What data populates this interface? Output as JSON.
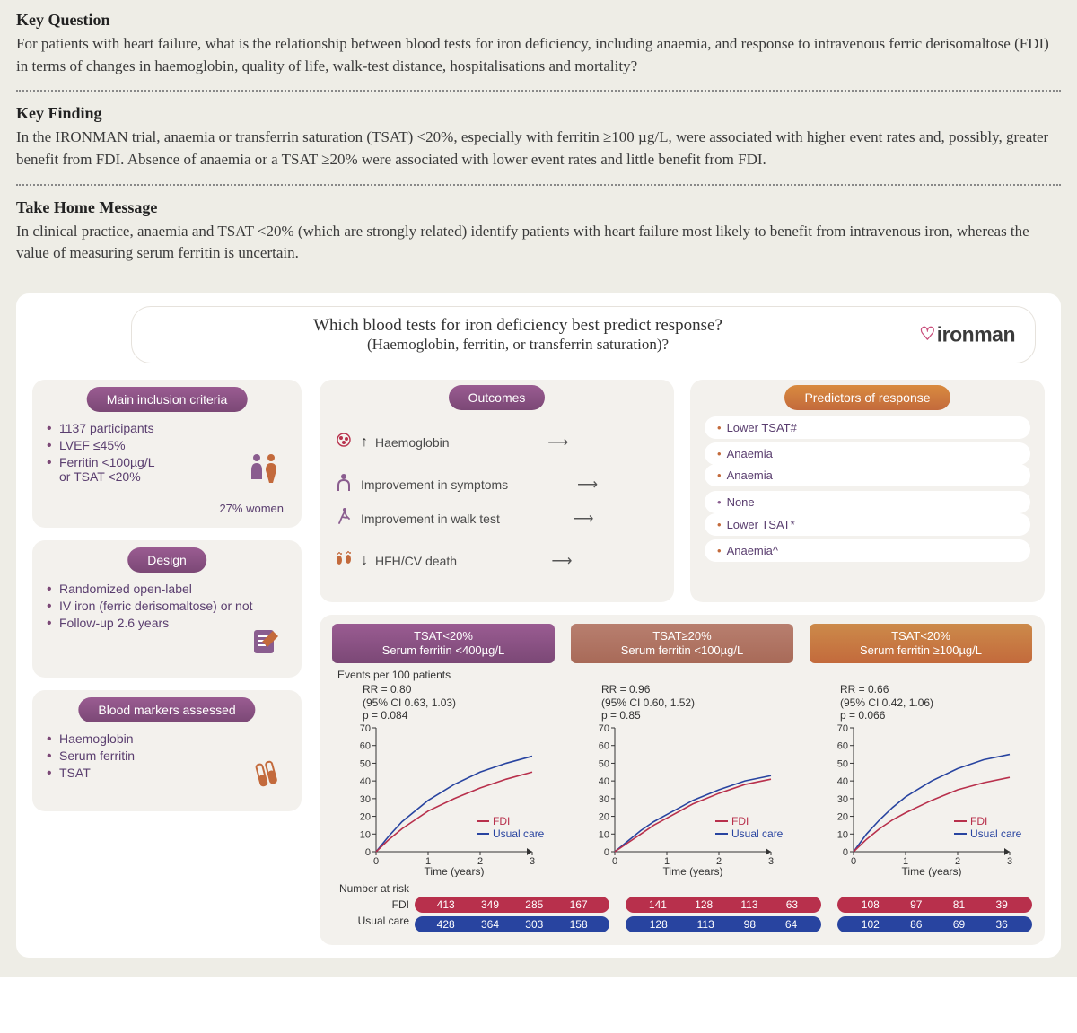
{
  "sections": {
    "key_question": {
      "title": "Key Question",
      "body": "For patients with heart failure, what is the relationship between blood tests for iron deficiency, including anaemia, and response to intravenous ferric derisomaltose (FDI) in terms of changes in haemoglobin, quality of life, walk-test distance, hospitalisations and mortality?"
    },
    "key_finding": {
      "title": "Key Finding",
      "body": "In the IRONMAN trial, anaemia or transferrin saturation (TSAT) <20%, especially with ferritin ≥100 µg/L, were associated with higher event rates and, possibly, greater benefit from FDI. Absence of anaemia or a TSAT ≥20% were associated with lower event rates and little benefit from FDI."
    },
    "take_home": {
      "title": "Take Home Message",
      "body": "In clinical practice, anaemia and TSAT <20% (which are strongly related) identify patients with heart failure most likely to benefit from intravenous iron, whereas the value of measuring serum ferritin is uncertain."
    }
  },
  "banner": {
    "title": "Which blood tests for iron deficiency best predict response?",
    "subtitle": "(Haemoglobin, ferritin, or transferrin saturation)?",
    "logo": "ironman"
  },
  "left_panels": {
    "inclusion": {
      "title": "Main inclusion criteria",
      "items": [
        "1137 participants",
        "LVEF ≤45%",
        "Ferritin <100µg/L\nor TSAT <20%"
      ],
      "pct_women": "27% women"
    },
    "design": {
      "title": "Design",
      "items": [
        "Randomized open-label",
        "IV iron (ferric derisomaltose) or not",
        "Follow-up 2.6 years"
      ]
    },
    "markers": {
      "title": "Blood markers assessed",
      "items": [
        "Haemoglobin",
        "Serum ferritin",
        "TSAT"
      ]
    }
  },
  "right_top": {
    "outcomes_title": "Outcomes",
    "predictors_title": "Predictors of response",
    "rows": [
      {
        "icon": "blood",
        "arrow": "up",
        "label": "Haemoglobin",
        "predictors": [
          "Lower TSAT#",
          "Anaemia"
        ]
      },
      {
        "icon": "person",
        "arrow": "",
        "label": "Improvement in symptoms",
        "predictors": [
          "Anaemia"
        ]
      },
      {
        "icon": "walk",
        "arrow": "",
        "label": "Improvement in walk test",
        "predictors": [
          "None"
        ]
      },
      {
        "icon": "feet",
        "arrow": "down",
        "label": "HFH/CV death",
        "predictors": [
          "Lower TSAT*",
          "Anaemia^"
        ]
      }
    ]
  },
  "charts": {
    "events_label": "Events per 100 patients",
    "ylim": [
      0,
      70
    ],
    "ytick_step": 10,
    "xlim": [
      0,
      3
    ],
    "xtick_step": 1,
    "xlabel": "Time (years)",
    "legend": {
      "fdi": "FDI",
      "usual": "Usual care"
    },
    "number_at_risk_label": "Number at risk",
    "fdi_label": "FDI",
    "usual_label": "Usual care",
    "colors": {
      "fdi": "#b8304c",
      "usual": "#2844a0",
      "axis": "#333333",
      "grid": "#e0e0e0",
      "bg": "#f3f1ed"
    },
    "subplots": [
      {
        "tab_line1": "TSAT<20%",
        "tab_line2": "Serum ferritin <400µg/L",
        "tab_color": "#7b4876",
        "rr": "RR = 0.80",
        "ci": "(95% CI 0.63, 1.03)",
        "p": "p = 0.084",
        "fdi": {
          "x": [
            0,
            0.25,
            0.5,
            0.75,
            1,
            1.5,
            2,
            2.5,
            3
          ],
          "y": [
            0,
            7,
            13,
            18,
            23,
            30,
            36,
            41,
            45
          ]
        },
        "usual": {
          "x": [
            0,
            0.25,
            0.5,
            0.75,
            1,
            1.5,
            2,
            2.5,
            3
          ],
          "y": [
            0,
            9,
            17,
            23,
            29,
            38,
            45,
            50,
            54
          ]
        },
        "at_risk_fdi": [
          413,
          349,
          285,
          167
        ],
        "at_risk_usual": [
          428,
          364,
          303,
          158
        ]
      },
      {
        "tab_line1": "TSAT≥20%",
        "tab_line2": "Serum ferritin <100µg/L",
        "tab_color": "#a86a58",
        "rr": "RR = 0.96",
        "ci": "(95% CI 0.60, 1.52)",
        "p": "p = 0.85",
        "fdi": {
          "x": [
            0,
            0.25,
            0.5,
            0.75,
            1,
            1.5,
            2,
            2.5,
            3
          ],
          "y": [
            0,
            5,
            10,
            15,
            19,
            27,
            33,
            38,
            41
          ]
        },
        "usual": {
          "x": [
            0,
            0.25,
            0.5,
            0.75,
            1,
            1.5,
            2,
            2.5,
            3
          ],
          "y": [
            0,
            6,
            12,
            17,
            21,
            29,
            35,
            40,
            43
          ]
        },
        "at_risk_fdi": [
          141,
          128,
          113,
          63
        ],
        "at_risk_usual": [
          128,
          113,
          98,
          64
        ]
      },
      {
        "tab_line1": "TSAT<20%",
        "tab_line2": "Serum ferritin ≥100µg/L",
        "tab_color": "#c36a3c",
        "rr": "RR = 0.66",
        "ci": "(95% CI 0.42, 1.06)",
        "p": "p = 0.066",
        "fdi": {
          "x": [
            0,
            0.25,
            0.5,
            0.75,
            1,
            1.5,
            2,
            2.5,
            3
          ],
          "y": [
            0,
            7,
            13,
            18,
            22,
            29,
            35,
            39,
            42
          ]
        },
        "usual": {
          "x": [
            0,
            0.25,
            0.5,
            0.75,
            1,
            1.5,
            2,
            2.5,
            3
          ],
          "y": [
            0,
            10,
            18,
            25,
            31,
            40,
            47,
            52,
            55
          ]
        },
        "at_risk_fdi": [
          108,
          97,
          81,
          39
        ],
        "at_risk_usual": [
          102,
          86,
          69,
          36
        ]
      }
    ]
  }
}
